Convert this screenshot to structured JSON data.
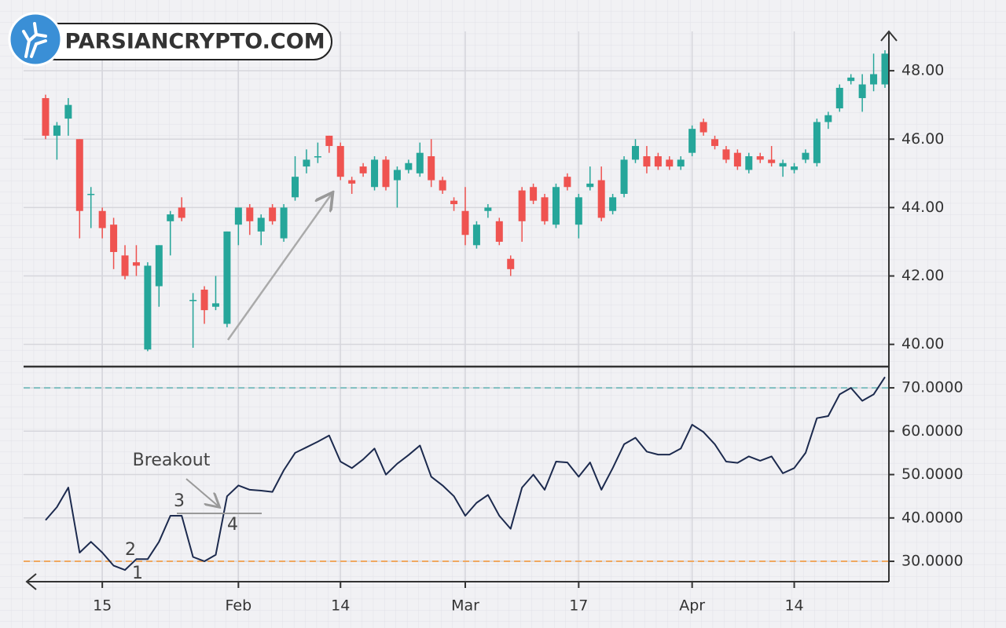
{
  "watermark": "PARSIANCRYPTO.COM",
  "chart_data": [
    {
      "type": "candlestick",
      "categories": [
        null,
        null,
        null,
        null,
        null,
        "15",
        null,
        null,
        null,
        null,
        null,
        null,
        null,
        null,
        null,
        null,
        null,
        "Feb",
        null,
        null,
        null,
        null,
        null,
        null,
        null,
        null,
        "14",
        null,
        null,
        null,
        null,
        null,
        null,
        null,
        null,
        null,
        null,
        "Mar",
        null,
        null,
        null,
        null,
        null,
        null,
        null,
        null,
        null,
        "17",
        null,
        null,
        null,
        null,
        null,
        null,
        null,
        null,
        null,
        "Apr",
        null,
        null,
        null,
        null,
        null,
        null,
        null,
        null,
        "14",
        null,
        null,
        null,
        null,
        null,
        null,
        null,
        null
      ],
      "open": [
        47.2,
        46.1,
        46.6,
        46.0,
        44.4,
        43.9,
        43.5,
        42.6,
        42.4,
        39.85,
        41.7,
        43.6,
        44.0,
        41.3,
        41.6,
        41.1,
        40.6,
        43.5,
        44.0,
        43.3,
        44.0,
        43.1,
        44.3,
        45.2,
        45.5,
        46.1,
        45.8,
        44.8,
        45.2,
        44.6,
        45.4,
        44.8,
        45.1,
        45.0,
        45.5,
        44.8,
        44.2,
        43.9,
        42.9,
        43.9,
        43.6,
        42.5,
        44.5,
        44.6,
        44.3,
        43.5,
        44.9,
        43.5,
        44.6,
        44.8,
        43.9,
        44.4,
        45.4,
        45.5,
        45.5,
        45.4,
        45.2,
        45.6,
        46.5,
        46.0,
        45.7,
        45.6,
        45.1,
        45.5,
        45.4,
        45.2,
        45.1,
        45.4,
        45.3,
        46.5,
        46.9,
        47.7,
        47.2,
        47.6,
        47.6
      ],
      "high": [
        47.3,
        46.5,
        47.2,
        46.0,
        44.6,
        44.0,
        43.7,
        42.9,
        42.9,
        42.4,
        42.9,
        43.9,
        44.3,
        41.5,
        41.7,
        42.0,
        43.3,
        44.0,
        44.1,
        43.8,
        44.1,
        44.1,
        45.5,
        45.7,
        45.9,
        46.1,
        45.9,
        44.9,
        45.3,
        45.5,
        45.5,
        45.2,
        45.4,
        45.9,
        46.0,
        44.9,
        44.3,
        44.6,
        43.6,
        44.1,
        43.7,
        42.6,
        44.6,
        44.7,
        44.4,
        44.7,
        45.0,
        44.4,
        45.2,
        45.2,
        44.4,
        45.5,
        46.0,
        45.8,
        45.6,
        45.5,
        45.5,
        46.4,
        46.6,
        46.1,
        45.8,
        45.7,
        45.6,
        45.6,
        45.8,
        45.4,
        45.3,
        45.7,
        46.6,
        46.8,
        47.6,
        47.9,
        47.9,
        48.5,
        48.6
      ],
      "low": [
        46.0,
        45.4,
        46.1,
        43.1,
        43.4,
        43.1,
        42.2,
        41.9,
        42.0,
        39.8,
        41.1,
        42.6,
        43.6,
        39.9,
        40.6,
        41.0,
        40.5,
        42.9,
        43.2,
        42.9,
        43.5,
        43.0,
        44.2,
        45.0,
        45.3,
        45.6,
        44.8,
        44.4,
        44.9,
        44.5,
        44.5,
        44.0,
        45.0,
        44.9,
        44.6,
        44.4,
        43.9,
        42.9,
        42.8,
        43.7,
        42.9,
        42.0,
        43.0,
        44.1,
        43.5,
        43.4,
        44.5,
        43.1,
        44.5,
        43.6,
        43.8,
        44.3,
        45.3,
        45.0,
        45.1,
        45.1,
        45.1,
        45.5,
        46.1,
        45.7,
        45.3,
        45.1,
        45.0,
        45.3,
        45.2,
        44.9,
        45.0,
        45.3,
        45.2,
        46.3,
        46.8,
        47.6,
        46.8,
        47.4,
        47.5
      ],
      "close": [
        46.1,
        46.4,
        47.0,
        43.9,
        44.4,
        43.4,
        42.7,
        42.0,
        42.3,
        42.3,
        42.9,
        43.8,
        43.7,
        41.3,
        41.0,
        41.2,
        43.3,
        44.0,
        43.6,
        43.7,
        43.6,
        44.0,
        44.9,
        45.4,
        45.5,
        45.8,
        44.9,
        44.7,
        45.0,
        45.4,
        44.6,
        45.1,
        45.3,
        45.6,
        44.8,
        44.5,
        44.1,
        43.2,
        43.5,
        44.0,
        43.0,
        42.2,
        43.6,
        44.2,
        43.6,
        44.6,
        44.6,
        44.3,
        44.7,
        43.7,
        44.3,
        45.4,
        45.8,
        45.2,
        45.2,
        45.2,
        45.4,
        46.3,
        46.2,
        45.8,
        45.4,
        45.2,
        45.5,
        45.4,
        45.3,
        45.3,
        45.2,
        45.6,
        46.5,
        46.7,
        47.5,
        47.8,
        47.6,
        47.9,
        48.5
      ],
      "up_color": "#26a69a",
      "down_color": "#ef5350",
      "ylim": [
        39.35,
        49.15
      ],
      "yticks": [
        {
          "value": 40,
          "label": "40.00"
        },
        {
          "value": 42,
          "label": "42.00"
        },
        {
          "value": 44,
          "label": "44.00"
        },
        {
          "value": 46,
          "label": "46.00"
        },
        {
          "value": 48,
          "label": "48.00"
        }
      ],
      "grid": true
    },
    {
      "type": "line",
      "values": [
        39.5,
        42.5,
        47,
        32,
        34.5,
        32,
        29,
        28,
        30.5,
        30.5,
        34.5,
        40.5,
        40.5,
        31,
        30,
        31.5,
        45,
        47.5,
        46.5,
        46.3,
        46,
        51,
        55,
        56.3,
        57.6,
        59,
        53,
        51.5,
        53.5,
        56,
        50,
        52.5,
        54.5,
        56.7,
        49.5,
        47.5,
        45,
        40.5,
        43.5,
        45.3,
        40.5,
        37.5,
        47,
        50,
        46.5,
        53,
        52.8,
        49.5,
        52.8,
        46.5,
        51.5,
        57,
        58.5,
        55.3,
        54.6,
        54.6,
        56,
        61.5,
        59.8,
        57,
        53,
        52.7,
        54.2,
        53.2,
        54.2,
        50.3,
        51.5,
        55,
        63,
        63.5,
        68.5,
        70,
        67,
        68.5,
        72.5
      ],
      "color": "#1c2a4e",
      "ylim": [
        25.3,
        74.9
      ],
      "yticks": [
        {
          "value": 30,
          "label": "30.0000"
        },
        {
          "value": 40,
          "label": "40.0000"
        },
        {
          "value": 50,
          "label": "50.0000"
        },
        {
          "value": 60,
          "label": "60.0000"
        },
        {
          "value": 70,
          "label": "70.0000"
        }
      ],
      "levels": [
        {
          "value": 70,
          "color": "#7fbfc0"
        },
        {
          "value": 30,
          "color": "#f0a860"
        }
      ],
      "grid": true,
      "annotations": [
        "Breakout",
        "1",
        "2",
        "3",
        "4"
      ]
    }
  ]
}
